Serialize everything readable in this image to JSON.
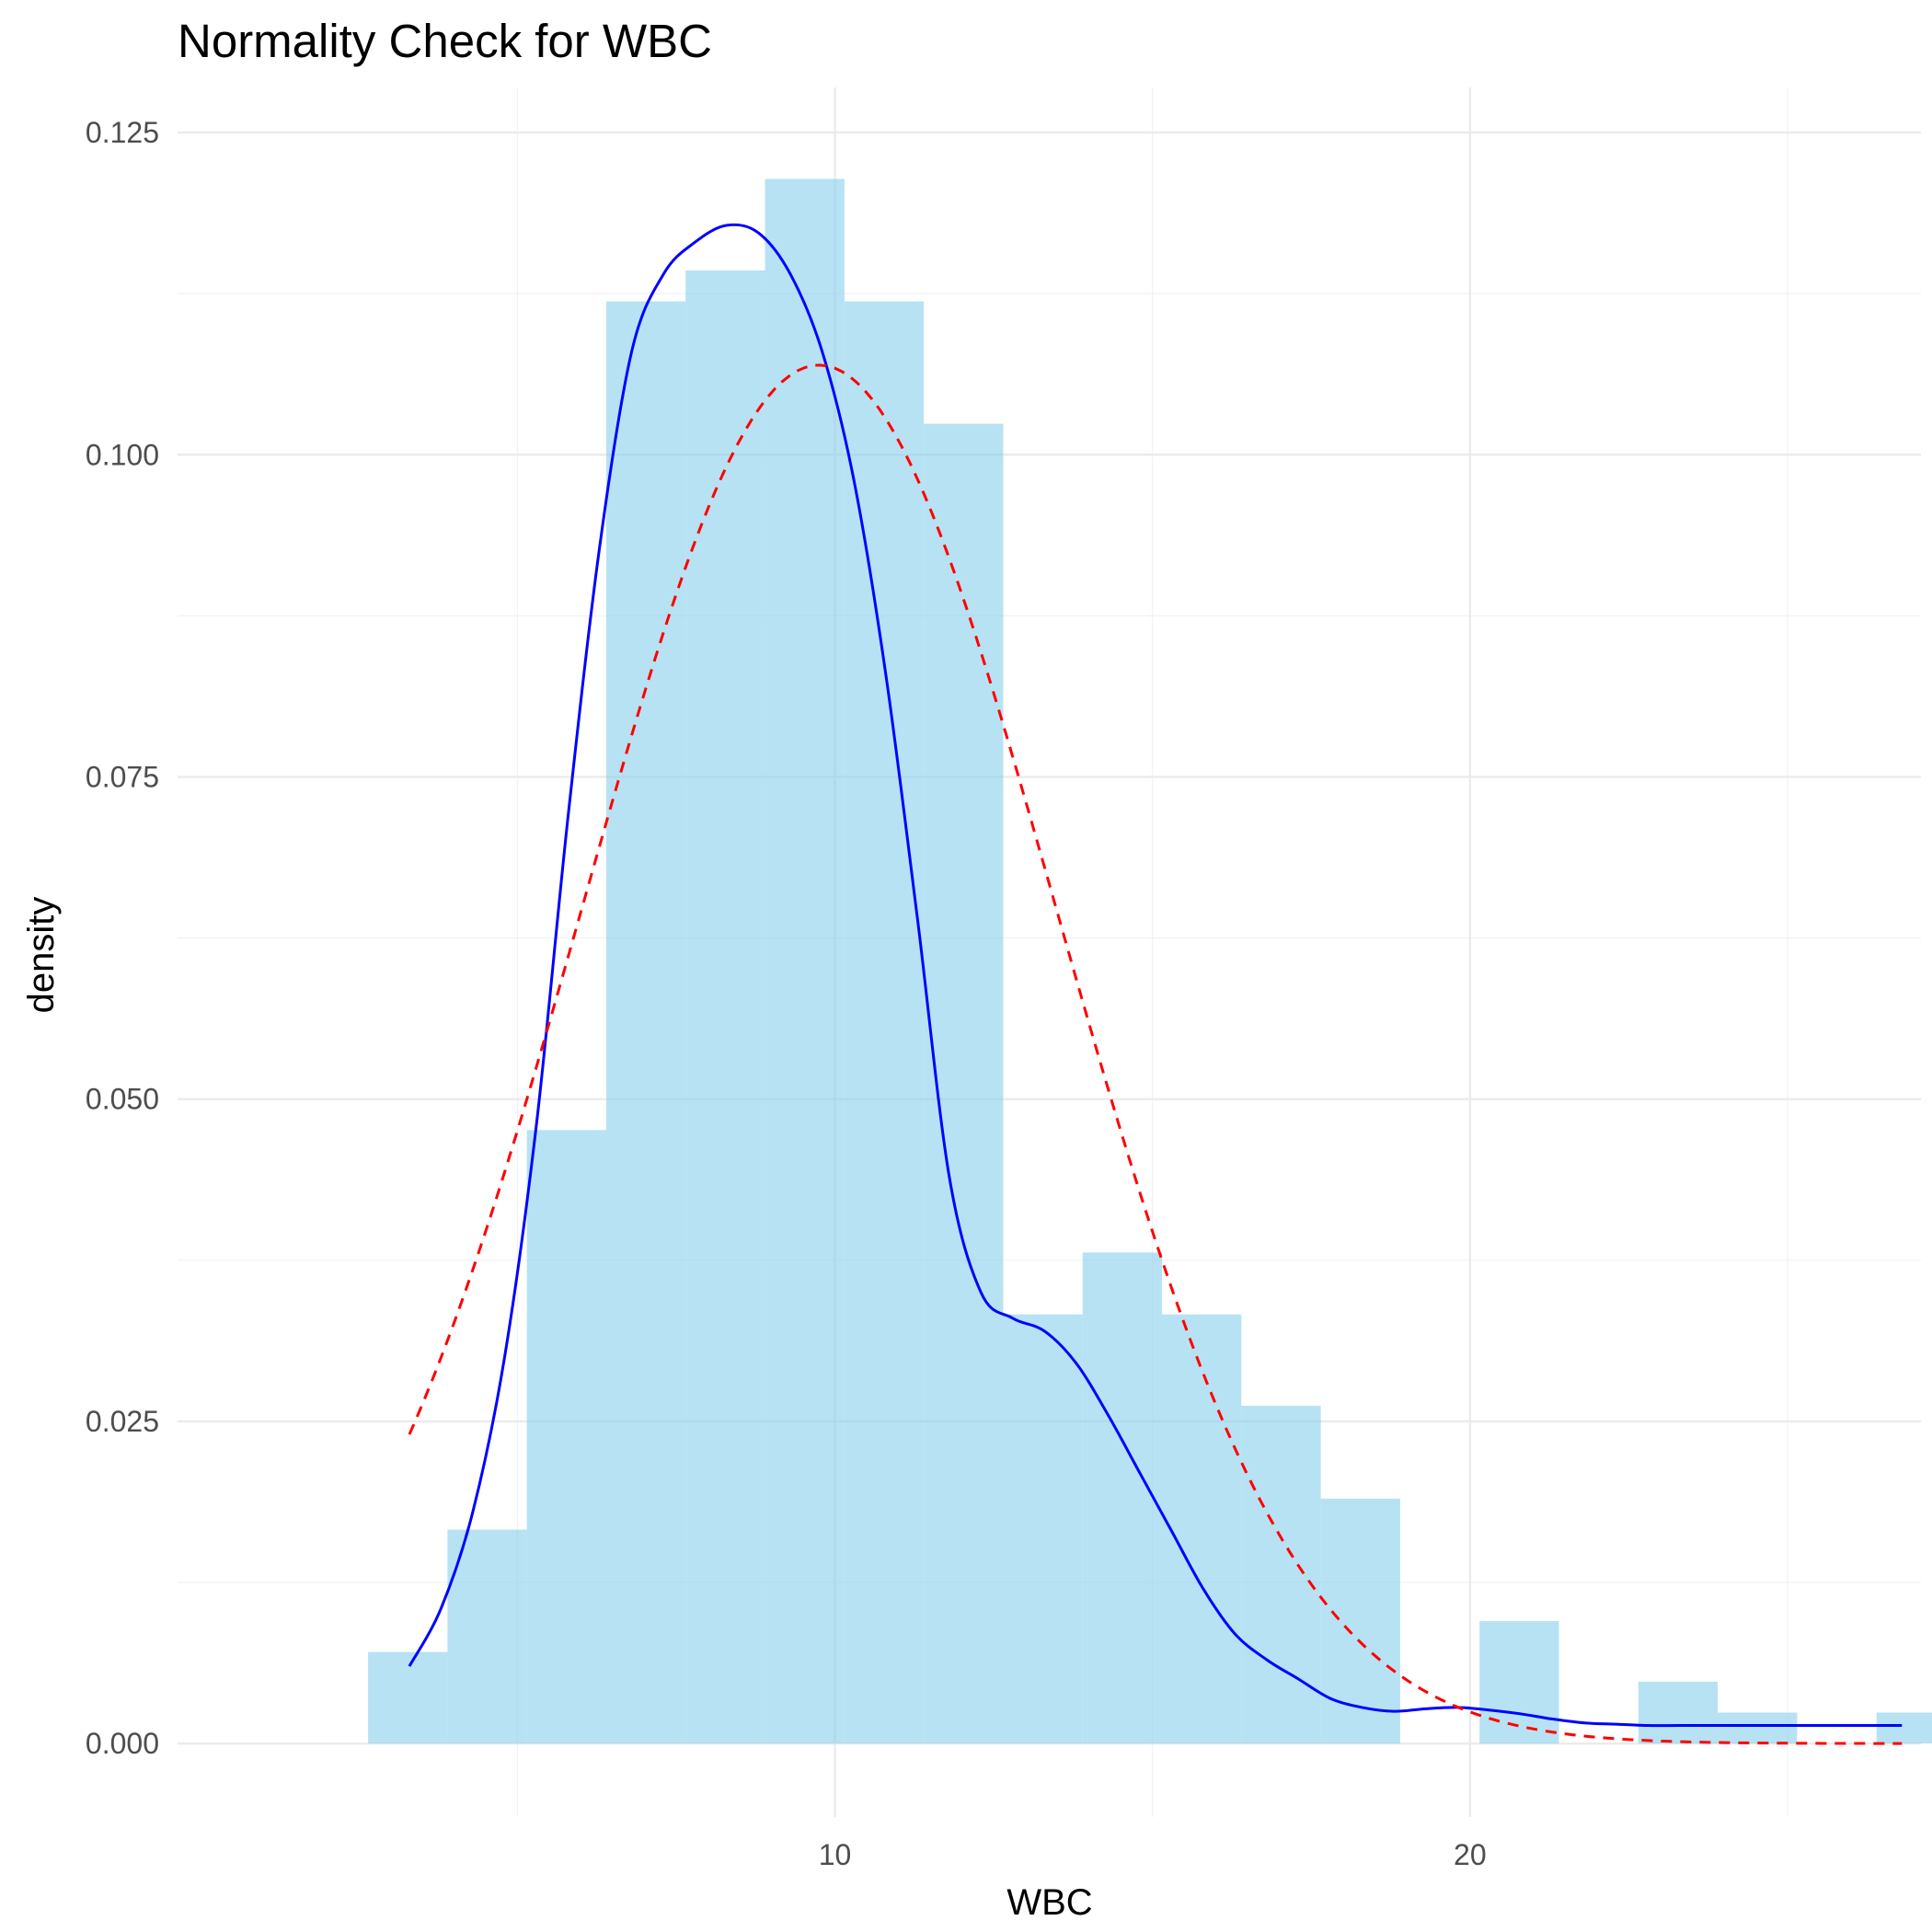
{
  "chart_data": {
    "type": "bar",
    "title": "Normality Check for WBC",
    "xlabel": "WBC",
    "ylabel": "density",
    "xlim": [
      -0.35,
      27.1
    ],
    "ylim": [
      -0.0057,
      0.1285
    ],
    "x_major_ticks": [
      10,
      20
    ],
    "x_minor_ticks": [
      5,
      15,
      25
    ],
    "y_major_ticks": [
      0.0,
      0.025,
      0.05,
      0.075,
      0.1,
      0.125
    ],
    "y_minor_ticks": [
      0.0125,
      0.0375,
      0.0625,
      0.0875,
      0.1125
    ],
    "x_tick_labels": [
      "10",
      "20"
    ],
    "y_tick_labels": [
      "0.000",
      "0.025",
      "0.050",
      "0.075",
      "0.100",
      "0.125"
    ],
    "grid": true,
    "histogram": {
      "bin_width": 1.25,
      "bins": [
        {
          "x0": 2.65,
          "x1": 3.9,
          "density": 0.0071
        },
        {
          "x0": 3.9,
          "x1": 5.15,
          "density": 0.0166
        },
        {
          "x0": 5.15,
          "x1": 6.4,
          "density": 0.0476
        },
        {
          "x0": 6.4,
          "x1": 7.65,
          "density": 0.1119
        },
        {
          "x0": 7.65,
          "x1": 8.9,
          "density": 0.1143
        },
        {
          "x0": 8.9,
          "x1": 10.15,
          "density": 0.1214
        },
        {
          "x0": 10.15,
          "x1": 11.4,
          "density": 0.1119
        },
        {
          "x0": 11.4,
          "x1": 12.65,
          "density": 0.1024
        },
        {
          "x0": 12.65,
          "x1": 13.9,
          "density": 0.0333
        },
        {
          "x0": 13.9,
          "x1": 15.15,
          "density": 0.0381
        },
        {
          "x0": 15.15,
          "x1": 16.4,
          "density": 0.0333
        },
        {
          "x0": 16.4,
          "x1": 17.65,
          "density": 0.0262
        },
        {
          "x0": 17.65,
          "x1": 18.9,
          "density": 0.019
        },
        {
          "x0": 18.9,
          "x1": 20.15,
          "density": 0.0
        },
        {
          "x0": 20.15,
          "x1": 21.4,
          "density": 0.0095
        },
        {
          "x0": 21.4,
          "x1": 22.65,
          "density": 0.0
        },
        {
          "x0": 22.65,
          "x1": 23.9,
          "density": 0.0048
        },
        {
          "x0": 23.9,
          "x1": 25.15,
          "density": 0.0024
        },
        {
          "x0": 25.15,
          "x1": 26.4,
          "density": 0.0
        },
        {
          "x0": 26.4,
          "x1": 27.65,
          "density": 0.0024
        }
      ],
      "color": "#87ceeb"
    },
    "series": [
      {
        "kind": "kernel-density",
        "color": "#0000ff",
        "style": "solid",
        "x": [
          3.3,
          3.8,
          4.3,
          4.8,
          5.3,
          5.8,
          6.3,
          6.8,
          7.3,
          7.8,
          8.3,
          8.8,
          9.3,
          9.8,
          10.3,
          10.8,
          11.3,
          11.8,
          12.3,
          12.8,
          13.3,
          13.8,
          14.3,
          14.8,
          15.3,
          15.8,
          16.3,
          16.8,
          17.3,
          17.8,
          18.3,
          18.8,
          19.3,
          19.8,
          20.3,
          20.8,
          21.3,
          21.8,
          22.3,
          22.8,
          23.3,
          23.8,
          24.3,
          24.8,
          25.3,
          25.8,
          26.3,
          26.8
        ],
        "y": [
          0.006,
          0.0105,
          0.018,
          0.03,
          0.048,
          0.072,
          0.093,
          0.108,
          0.114,
          0.1165,
          0.1178,
          0.1172,
          0.114,
          0.108,
          0.098,
          0.083,
          0.064,
          0.044,
          0.035,
          0.033,
          0.032,
          0.0295,
          0.0255,
          0.021,
          0.0165,
          0.012,
          0.0085,
          0.0065,
          0.005,
          0.0035,
          0.0028,
          0.0025,
          0.0027,
          0.0028,
          0.0026,
          0.0023,
          0.0019,
          0.0016,
          0.0015,
          0.0014,
          0.0014,
          0.0014,
          0.0014,
          0.0014,
          0.0014,
          0.0014,
          0.0014,
          0.0014
        ]
      },
      {
        "kind": "normal-curve",
        "color": "#ff0000",
        "style": "dashed",
        "mean": 9.75,
        "sd": 3.73,
        "x_range": [
          3.3,
          26.8
        ]
      }
    ]
  }
}
